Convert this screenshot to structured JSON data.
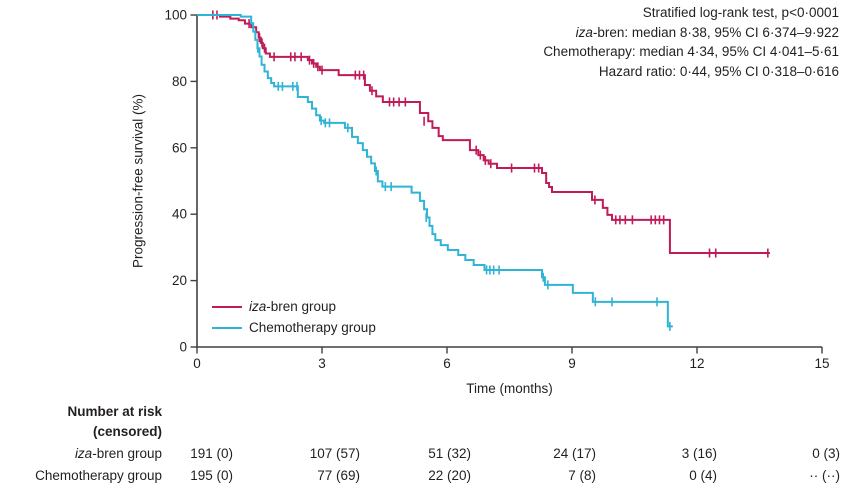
{
  "figure": {
    "colors": {
      "iza_bren": "#c11a58",
      "chemotherapy": "#2fb4d5",
      "axis": "#414042",
      "text": "#231f20",
      "background": "#ffffff"
    }
  },
  "annotations": {
    "lines": [
      {
        "italic_prefix": "",
        "text": "Stratified log-rank test, p<0·0001"
      },
      {
        "italic_prefix": "iza",
        "text": "-bren: median 8·38, 95% CI 6·374–9·922"
      },
      {
        "italic_prefix": "",
        "text": "Chemotherapy: median 4·34, 95% CI 4·041–5·61"
      },
      {
        "italic_prefix": "",
        "text": "Hazard ratio: 0·44, 95% CI 0·318–0·616"
      }
    ]
  },
  "chart_data": {
    "type": "line",
    "subtype": "kaplan_meier_step",
    "title": "",
    "xlabel": "Time (months)",
    "ylabel": "Progression-free survival (%)",
    "xlim": [
      0,
      15
    ],
    "ylim": [
      0,
      100
    ],
    "xticks": [
      0,
      3,
      6,
      9,
      12,
      15
    ],
    "yticks": [
      0,
      20,
      40,
      60,
      80,
      100
    ],
    "grid": false,
    "legend_position": "inside-lower-left",
    "series": [
      {
        "full_name": "iza-bren group",
        "color": "#c11a58",
        "end_time": 13.75,
        "steps": [
          [
            0,
            100
          ],
          [
            0.55,
            99.5
          ],
          [
            0.8,
            98.9
          ],
          [
            1.0,
            98.4
          ],
          [
            1.15,
            97.4
          ],
          [
            1.3,
            96.3
          ],
          [
            1.42,
            94.8
          ],
          [
            1.48,
            93.2
          ],
          [
            1.53,
            91.6
          ],
          [
            1.58,
            90.0
          ],
          [
            1.65,
            88.4
          ],
          [
            1.75,
            87.4
          ],
          [
            2.66,
            86.4
          ],
          [
            2.76,
            85.4
          ],
          [
            2.86,
            84.4
          ],
          [
            2.95,
            83.4
          ],
          [
            3.4,
            81.9
          ],
          [
            4.03,
            78.9
          ],
          [
            4.15,
            77.2
          ],
          [
            4.3,
            75.5
          ],
          [
            4.46,
            73.8
          ],
          [
            5.35,
            70.5
          ],
          [
            5.55,
            68.0
          ],
          [
            5.65,
            66.0
          ],
          [
            5.8,
            63.5
          ],
          [
            5.9,
            62.3
          ],
          [
            6.55,
            59.3
          ],
          [
            6.75,
            57.8
          ],
          [
            6.88,
            56.2
          ],
          [
            7.0,
            55.2
          ],
          [
            7.2,
            53.9
          ],
          [
            8.28,
            52.4
          ],
          [
            8.38,
            49.4
          ],
          [
            8.45,
            48.2
          ],
          [
            8.52,
            46.7
          ],
          [
            9.48,
            44.3
          ],
          [
            9.74,
            41.9
          ],
          [
            9.85,
            39.8
          ],
          [
            9.96,
            38.3
          ],
          [
            11.35,
            28.3
          ]
        ],
        "censors": [
          [
            0.38,
            100
          ],
          [
            0.48,
            100
          ],
          [
            1.25,
            97.4
          ],
          [
            1.5,
            93.2
          ],
          [
            1.56,
            91.6
          ],
          [
            1.62,
            90.0
          ],
          [
            1.85,
            87.4
          ],
          [
            2.25,
            87.4
          ],
          [
            2.35,
            87.4
          ],
          [
            2.5,
            87.4
          ],
          [
            2.7,
            86.4
          ],
          [
            2.8,
            85.4
          ],
          [
            2.9,
            84.4
          ],
          [
            3.0,
            83.4
          ],
          [
            3.8,
            81.9
          ],
          [
            3.9,
            81.9
          ],
          [
            4.0,
            81.9
          ],
          [
            4.2,
            77.2
          ],
          [
            4.62,
            73.8
          ],
          [
            4.72,
            73.8
          ],
          [
            4.85,
            73.8
          ],
          [
            5.0,
            73.8
          ],
          [
            5.45,
            68.0
          ],
          [
            6.7,
            59.3
          ],
          [
            6.8,
            57.8
          ],
          [
            6.92,
            56.2
          ],
          [
            7.05,
            55.2
          ],
          [
            7.55,
            53.9
          ],
          [
            8.1,
            53.9
          ],
          [
            8.2,
            53.9
          ],
          [
            9.55,
            44.3
          ],
          [
            10.05,
            38.3
          ],
          [
            10.15,
            38.3
          ],
          [
            10.28,
            38.3
          ],
          [
            10.45,
            38.3
          ],
          [
            10.9,
            38.3
          ],
          [
            11.0,
            38.3
          ],
          [
            11.1,
            38.3
          ],
          [
            11.2,
            38.3
          ],
          [
            12.3,
            28.3
          ],
          [
            12.45,
            28.3
          ],
          [
            13.7,
            28.3
          ]
        ]
      },
      {
        "full_name": "Chemotherapy group",
        "color": "#2fb4d5",
        "end_time": 11.42,
        "steps": [
          [
            0,
            100
          ],
          [
            1.05,
            99.5
          ],
          [
            1.3,
            97.5
          ],
          [
            1.35,
            95.0
          ],
          [
            1.4,
            92.5
          ],
          [
            1.45,
            90.0
          ],
          [
            1.5,
            87.5
          ],
          [
            1.55,
            85.0
          ],
          [
            1.62,
            83.0
          ],
          [
            1.7,
            81.0
          ],
          [
            1.78,
            79.5
          ],
          [
            1.85,
            78.5
          ],
          [
            2.42,
            75.3
          ],
          [
            2.66,
            73.8
          ],
          [
            2.76,
            71.8
          ],
          [
            2.86,
            69.8
          ],
          [
            2.95,
            68.2
          ],
          [
            3.05,
            67.5
          ],
          [
            3.55,
            66.0
          ],
          [
            3.72,
            63.3
          ],
          [
            3.86,
            61.4
          ],
          [
            3.98,
            59.3
          ],
          [
            4.08,
            57.3
          ],
          [
            4.18,
            55.3
          ],
          [
            4.27,
            53.0
          ],
          [
            4.34,
            49.9
          ],
          [
            4.45,
            48.3
          ],
          [
            5.15,
            46.5
          ],
          [
            5.35,
            44.0
          ],
          [
            5.45,
            41.5
          ],
          [
            5.52,
            39.0
          ],
          [
            5.58,
            36.5
          ],
          [
            5.65,
            34.0
          ],
          [
            5.72,
            32.2
          ],
          [
            5.85,
            30.7
          ],
          [
            6.02,
            29.2
          ],
          [
            6.27,
            27.7
          ],
          [
            6.44,
            26.2
          ],
          [
            6.64,
            24.7
          ],
          [
            6.9,
            23.2
          ],
          [
            8.28,
            21.0
          ],
          [
            8.35,
            18.7
          ],
          [
            9.02,
            16.3
          ],
          [
            9.5,
            13.6
          ],
          [
            11.3,
            6.2
          ]
        ],
        "censors": [
          [
            1.46,
            90.0
          ],
          [
            1.95,
            78.5
          ],
          [
            2.05,
            78.5
          ],
          [
            2.3,
            78.5
          ],
          [
            2.4,
            78.5
          ],
          [
            2.98,
            68.2
          ],
          [
            3.08,
            67.5
          ],
          [
            3.18,
            67.5
          ],
          [
            3.62,
            66.0
          ],
          [
            4.3,
            53.0
          ],
          [
            4.52,
            48.3
          ],
          [
            4.66,
            48.3
          ],
          [
            5.5,
            39.0
          ],
          [
            6.95,
            23.2
          ],
          [
            7.03,
            23.2
          ],
          [
            7.12,
            23.2
          ],
          [
            7.25,
            23.2
          ],
          [
            8.31,
            21.0
          ],
          [
            8.42,
            18.7
          ],
          [
            9.56,
            13.6
          ],
          [
            9.96,
            13.6
          ],
          [
            11.04,
            13.6
          ],
          [
            11.35,
            6.2
          ]
        ]
      }
    ]
  },
  "legend": {
    "items": [
      {
        "italic_prefix": "iza",
        "label": "-bren group",
        "color": "#c11a58"
      },
      {
        "italic_prefix": "",
        "label": "Chemotherapy group",
        "color": "#2fb4d5"
      }
    ]
  },
  "risk_table": {
    "header": "Number at risk",
    "subheader": "(censored)",
    "rows": [
      {
        "italic_prefix": "iza",
        "label": "-bren group",
        "values": [
          "191 (0)",
          "107 (57)",
          "51 (32)",
          "24 (17)",
          "3 (16)",
          "0 (3)"
        ]
      },
      {
        "italic_prefix": "",
        "label": "Chemotherapy group",
        "values": [
          "195 (0)",
          "77 (69)",
          "22 (20)",
          "7 (8)",
          "0 (4)",
          "·· (··)"
        ]
      }
    ]
  }
}
